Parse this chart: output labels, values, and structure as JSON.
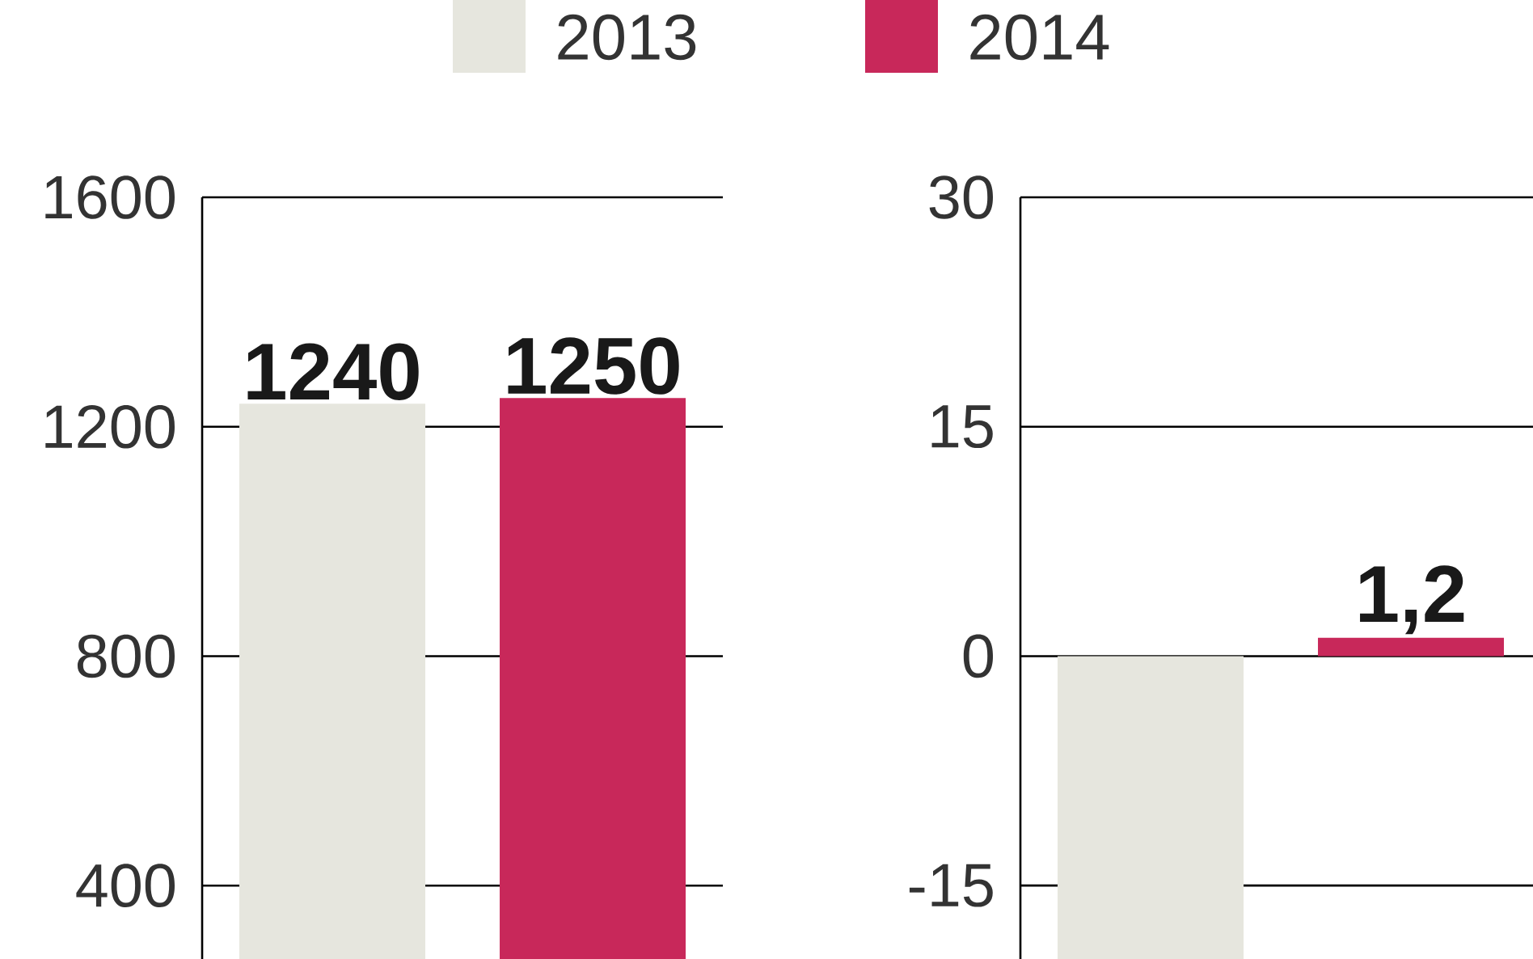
{
  "chart_data": [
    {
      "type": "bar",
      "categories": [
        null
      ],
      "ylim": [
        272,
        1600
      ],
      "yticks": [
        400,
        800,
        1200,
        1600
      ],
      "grid": "y",
      "legend": "top",
      "series": [
        {
          "name": "2013",
          "color": "#e6e6de",
          "values": [
            1240
          ],
          "value_labels": [
            "1240"
          ]
        },
        {
          "name": "2014",
          "color": "#c8285a",
          "values": [
            1250
          ],
          "value_labels": [
            "1250"
          ]
        }
      ]
    },
    {
      "type": "bar",
      "categories": [
        null
      ],
      "ylim": [
        -19.8,
        30
      ],
      "yticks": [
        -15,
        0,
        15,
        30
      ],
      "grid": "y",
      "series": [
        {
          "color": "#e6e6de",
          "values": [
            -19.8
          ],
          "value_labels": [
            null
          ]
        },
        {
          "color": "#c8285a",
          "values": [
            1.2
          ],
          "value_labels": [
            "1,2"
          ]
        }
      ]
    }
  ]
}
